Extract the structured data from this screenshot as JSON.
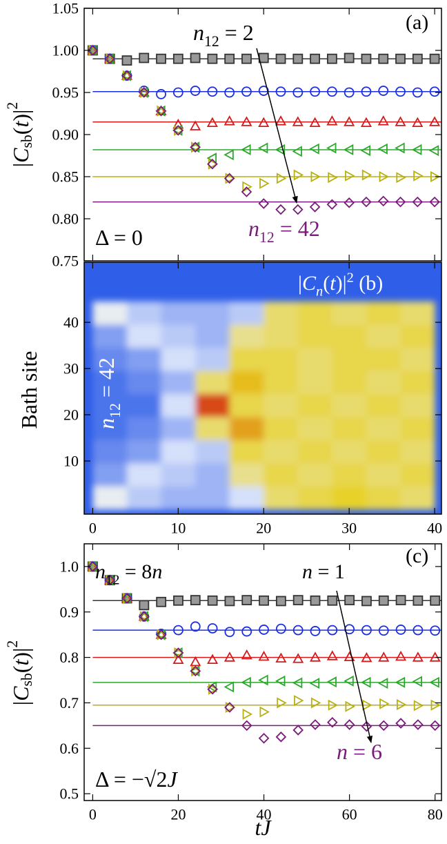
{
  "chart_data": [
    {
      "type": "scatter",
      "ylabel": [
        {
          "t": "|"
        },
        {
          "t": "C",
          "italic": true
        },
        {
          "t": "sb",
          "sub": true
        },
        {
          "t": "("
        },
        {
          "t": "t",
          "italic": true
        },
        {
          "t": ")|"
        },
        {
          "t": "2",
          "sup": true
        }
      ],
      "x": [
        0,
        2,
        4,
        6,
        8,
        10,
        12,
        14,
        16,
        18,
        20,
        22,
        24,
        26,
        28,
        30,
        32,
        34,
        36,
        38,
        40
      ],
      "xlim": [
        -1,
        40.8
      ],
      "xticks": [
        0,
        10,
        20,
        30,
        40
      ],
      "show_xtick_labels": false,
      "ylim": [
        0.75,
        1.05
      ],
      "yticks": [
        0.75,
        {
          "value": 0.8,
          "label": "0.80"
        },
        0.85,
        {
          "value": 0.9,
          "label": "0.90"
        },
        0.95,
        {
          "value": 1,
          "label": "1.00"
        },
        1.05
      ],
      "series": [
        {
          "color": "#333333",
          "fill": "#999999",
          "marker": "square",
          "asymptote": 0.99,
          "values": [
            1.0,
            0.99,
            0.988,
            0.991,
            0.99,
            0.99,
            0.991,
            0.99,
            0.99,
            0.99,
            0.991,
            0.99,
            0.99,
            0.99,
            0.99,
            0.991,
            0.99,
            0.99,
            0.99,
            0.99,
            0.99
          ]
        },
        {
          "color": "#1a2ee0",
          "fill": "none",
          "marker": "circle",
          "asymptote": 0.951,
          "values": [
            1.0,
            0.99,
            0.97,
            0.952,
            0.948,
            0.95,
            0.952,
            0.951,
            0.95,
            0.951,
            0.952,
            0.951,
            0.95,
            0.951,
            0.951,
            0.95,
            0.951,
            0.952,
            0.951,
            0.95,
            0.951
          ]
        },
        {
          "color": "#d41a1a",
          "fill": "none",
          "marker": "triangle-up",
          "asymptote": 0.915,
          "values": [
            1.0,
            0.99,
            0.97,
            0.95,
            0.928,
            0.912,
            0.91,
            0.914,
            0.916,
            0.915,
            0.914,
            0.916,
            0.915,
            0.914,
            0.916,
            0.915,
            0.914,
            0.916,
            0.915,
            0.914,
            0.915
          ]
        },
        {
          "color": "#2aa82a",
          "fill": "none",
          "marker": "triangle-left",
          "asymptote": 0.882,
          "values": [
            1.0,
            0.99,
            0.97,
            0.95,
            0.928,
            0.905,
            0.885,
            0.872,
            0.876,
            0.882,
            0.884,
            0.882,
            0.88,
            0.883,
            0.884,
            0.882,
            0.881,
            0.883,
            0.884,
            0.882,
            0.881
          ]
        },
        {
          "color": "#b8b010",
          "fill": "none",
          "marker": "triangle-right",
          "asymptote": 0.85,
          "values": [
            1.0,
            0.99,
            0.97,
            0.95,
            0.928,
            0.905,
            0.885,
            0.865,
            0.848,
            0.838,
            0.842,
            0.848,
            0.852,
            0.85,
            0.849,
            0.851,
            0.852,
            0.85,
            0.849,
            0.851,
            0.85
          ]
        },
        {
          "color": "#7a1a7a",
          "fill": "none",
          "marker": "diamond",
          "asymptote": 0.82,
          "values": [
            1.0,
            0.99,
            0.97,
            0.95,
            0.928,
            0.905,
            0.885,
            0.865,
            0.848,
            0.832,
            0.818,
            0.811,
            0.811,
            0.814,
            0.817,
            0.819,
            0.82,
            0.821,
            0.82,
            0.82,
            0.82
          ]
        }
      ],
      "annotations": [
        {
          "color": "#000000",
          "parts": [
            {
              "t": "n",
              "italic": true
            },
            {
              "t": "12",
              "sub": true
            },
            {
              "t": " = 2"
            }
          ]
        },
        {
          "color": "#000000",
          "parts": [
            {
              "t": "(a)"
            }
          ]
        },
        {
          "color": "#7a1a7a",
          "parts": [
            {
              "t": "n",
              "italic": true
            },
            {
              "t": "12",
              "sub": true
            },
            {
              "t": " = 42"
            }
          ]
        },
        {
          "color": "#000000",
          "parts": [
            {
              "t": "Δ = 0"
            }
          ]
        }
      ]
    },
    {
      "type": "heatmap",
      "ylabel": [
        {
          "t": "Bath site"
        }
      ],
      "x": [
        2,
        6,
        10,
        14,
        18,
        22,
        26,
        30,
        34,
        38
      ],
      "y": [
        42,
        37,
        32,
        27,
        22,
        17,
        12,
        7,
        2
      ],
      "z": [
        [
          0.35,
          0.25,
          0.2,
          0.2,
          0.25,
          0.55,
          0.6,
          0.55,
          0.6,
          0.55
        ],
        [
          0.15,
          0.3,
          0.25,
          0.2,
          0.5,
          0.55,
          0.6,
          0.6,
          0.55,
          0.6
        ],
        [
          0.1,
          0.15,
          0.3,
          0.25,
          0.6,
          0.6,
          0.55,
          0.6,
          0.6,
          0.55
        ],
        [
          0.05,
          0.1,
          0.2,
          0.55,
          0.7,
          0.6,
          0.55,
          0.6,
          0.55,
          0.6
        ],
        [
          0.05,
          0.05,
          0.3,
          0.9,
          0.6,
          0.55,
          0.6,
          0.55,
          0.6,
          0.55
        ],
        [
          0.05,
          0.1,
          0.2,
          0.55,
          0.75,
          0.6,
          0.55,
          0.6,
          0.55,
          0.6
        ],
        [
          0.1,
          0.15,
          0.3,
          0.25,
          0.6,
          0.55,
          0.6,
          0.55,
          0.6,
          0.55
        ],
        [
          0.15,
          0.3,
          0.25,
          0.2,
          0.5,
          0.6,
          0.55,
          0.6,
          0.55,
          0.6
        ],
        [
          0.35,
          0.25,
          0.2,
          0.2,
          0.3,
          0.55,
          0.6,
          0.65,
          0.6,
          0.55
        ]
      ],
      "colormap": [
        "#2f5ee8",
        "#e8eefc",
        "#e8d020",
        "#d01010"
      ],
      "xlim": [
        -1,
        40.8
      ],
      "xticks": [
        0,
        10,
        20,
        30,
        40
      ],
      "show_xtick_labels": true,
      "ylim": [
        -1.5,
        53
      ],
      "yticks": [
        10,
        20,
        30,
        40
      ],
      "annotations": [
        {
          "color": "#ffffff",
          "parts": [
            {
              "t": "|"
            },
            {
              "t": "C",
              "italic": true
            },
            {
              "t": "n",
              "sub": true,
              "italic": true
            },
            {
              "t": "("
            },
            {
              "t": "t",
              "italic": true
            },
            {
              "t": ")|"
            },
            {
              "t": "2",
              "sup": true
            },
            {
              "t": " (b)"
            }
          ]
        },
        {
          "color": "#ffffff",
          "parts": [
            {
              "t": "n",
              "italic": true
            },
            {
              "t": "12",
              "sub": true
            },
            {
              "t": " = 42"
            }
          ]
        }
      ]
    },
    {
      "type": "scatter",
      "ylabel": [
        {
          "t": "|"
        },
        {
          "t": "C",
          "italic": true
        },
        {
          "t": "sb",
          "sub": true
        },
        {
          "t": "("
        },
        {
          "t": "t",
          "italic": true
        },
        {
          "t": ")|"
        },
        {
          "t": "2",
          "sup": true
        }
      ],
      "xlabel": [
        {
          "t": "tJ",
          "italic": true
        }
      ],
      "x": [
        0,
        4,
        8,
        12,
        16,
        20,
        24,
        28,
        32,
        36,
        40,
        44,
        48,
        52,
        56,
        60,
        64,
        68,
        72,
        76,
        80
      ],
      "xlim": [
        -2,
        81.5
      ],
      "xticks": [
        0,
        20,
        40,
        60,
        80
      ],
      "show_xtick_labels": true,
      "ylim": [
        0.485,
        1.05
      ],
      "yticks": [
        0.5,
        0.6,
        0.7,
        0.8,
        0.9,
        {
          "value": 1,
          "label": "1.0"
        }
      ],
      "series": [
        {
          "color": "#333333",
          "fill": "#999999",
          "marker": "square",
          "asymptote": 0.925,
          "values": [
            1.0,
            0.97,
            0.93,
            0.915,
            0.922,
            0.925,
            0.926,
            0.925,
            0.924,
            0.926,
            0.925,
            0.924,
            0.926,
            0.925,
            0.925,
            0.926,
            0.924,
            0.925,
            0.926,
            0.925,
            0.925
          ]
        },
        {
          "color": "#1a2ee0",
          "fill": "none",
          "marker": "circle",
          "asymptote": 0.86,
          "values": [
            1.0,
            0.97,
            0.93,
            0.89,
            0.852,
            0.86,
            0.868,
            0.864,
            0.856,
            0.857,
            0.861,
            0.863,
            0.86,
            0.858,
            0.86,
            0.862,
            0.86,
            0.859,
            0.861,
            0.86,
            0.859
          ]
        },
        {
          "color": "#d41a1a",
          "fill": "none",
          "marker": "triangle-up",
          "asymptote": 0.8,
          "values": [
            1.0,
            0.97,
            0.93,
            0.89,
            0.85,
            0.795,
            0.79,
            0.795,
            0.8,
            0.805,
            0.802,
            0.798,
            0.797,
            0.8,
            0.803,
            0.801,
            0.799,
            0.8,
            0.802,
            0.8,
            0.8
          ]
        },
        {
          "color": "#2aa82a",
          "fill": "none",
          "marker": "triangle-left",
          "asymptote": 0.745,
          "values": [
            1.0,
            0.97,
            0.93,
            0.89,
            0.85,
            0.81,
            0.77,
            0.735,
            0.735,
            0.745,
            0.75,
            0.748,
            0.744,
            0.743,
            0.746,
            0.748,
            0.745,
            0.743,
            0.745,
            0.747,
            0.745
          ]
        },
        {
          "color": "#b8b010",
          "fill": "none",
          "marker": "triangle-right",
          "asymptote": 0.695,
          "values": [
            1.0,
            0.97,
            0.93,
            0.89,
            0.85,
            0.81,
            0.77,
            0.73,
            0.69,
            0.675,
            0.68,
            0.7,
            0.705,
            0.7,
            0.695,
            0.692,
            0.695,
            0.698,
            0.696,
            0.694,
            0.695
          ]
        },
        {
          "color": "#7a1a7a",
          "fill": "none",
          "marker": "diamond",
          "asymptote": 0.65,
          "values": [
            1.0,
            0.97,
            0.93,
            0.89,
            0.85,
            0.81,
            0.77,
            0.73,
            0.69,
            0.65,
            0.622,
            0.625,
            0.64,
            0.652,
            0.657,
            0.652,
            0.648,
            0.65,
            0.655,
            0.652,
            0.65
          ]
        }
      ],
      "annotations": [
        {
          "color": "#000000",
          "parts": [
            {
              "t": "n",
              "italic": true
            },
            {
              "t": "12",
              "sub": true
            },
            {
              "t": " = 8"
            },
            {
              "t": "n",
              "italic": true
            }
          ]
        },
        {
          "color": "#000000",
          "parts": [
            {
              "t": "n",
              "italic": true
            },
            {
              "t": " = 1"
            }
          ]
        },
        {
          "color": "#000000",
          "parts": [
            {
              "t": "(c)"
            }
          ]
        },
        {
          "color": "#7a1a7a",
          "parts": [
            {
              "t": "n",
              "italic": true
            },
            {
              "t": " = 6"
            }
          ]
        },
        {
          "color": "#000000",
          "parts": [
            {
              "t": "Δ = −√2"
            },
            {
              "t": "J",
              "italic": true
            }
          ]
        }
      ]
    }
  ]
}
